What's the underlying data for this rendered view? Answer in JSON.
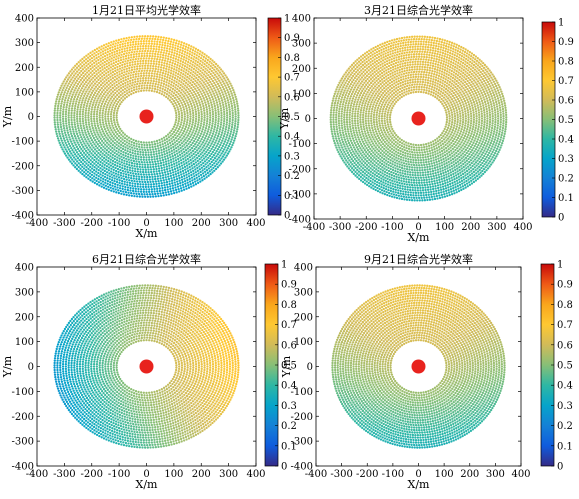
{
  "colormap": "parula",
  "colorbar": {
    "ticks": [
      0,
      0.1,
      0.2,
      0.3,
      0.4,
      0.5,
      0.6,
      0.7,
      0.8,
      0.9,
      1
    ],
    "tick_labels": [
      "0",
      "0.1",
      "0.2",
      "0.3",
      "0.4",
      "0.5",
      "0.6",
      "0.7",
      "0.8",
      "0.9",
      "1"
    ],
    "colors": [
      "#352a87",
      "#0f5cdd",
      "#1481d6",
      "#06a4ca",
      "#2eb7a4",
      "#87bf77",
      "#d1bb59",
      "#fec832",
      "#f9a61c",
      "#ef5a16",
      "#c80a0a"
    ]
  },
  "tower_color": "#e8231e",
  "chart_data": [
    {
      "type": "scatter",
      "title": "1月21日平均光学效率",
      "xlabel": "X/m",
      "ylabel": "Y/m",
      "xlim": [
        -400,
        400
      ],
      "ylim": [
        -400,
        400
      ],
      "x_ticks": [
        -400,
        -300,
        -200,
        -100,
        0,
        100,
        200,
        300,
        400
      ],
      "y_ticks": [
        -400,
        -300,
        -200,
        -100,
        0,
        100,
        200,
        300,
        400
      ],
      "x_tick_labels": [
        "-400",
        "-300",
        "-200",
        "-100",
        "0",
        "100",
        "200",
        "300",
        "400"
      ],
      "y_tick_labels": [
        "-400",
        "-300",
        "-200",
        "-100",
        "0",
        "100",
        "200",
        "300",
        "400"
      ],
      "field": {
        "inner_radius": 100,
        "outer_rx": 340,
        "outer_ry": 330
      },
      "tower": [
        0,
        0
      ],
      "efficiency_model": {
        "base": 0.55,
        "dir_x": 0,
        "dir_y": 1,
        "gain": 0.22
      }
    },
    {
      "type": "scatter",
      "title": "3月21日综合光学效率",
      "xlabel": "X/m",
      "ylabel": "Y/m",
      "xlim": [
        -400,
        400
      ],
      "ylim": [
        -400,
        400
      ],
      "x_ticks": [
        -400,
        -300,
        -200,
        -100,
        0,
        100,
        200,
        300,
        400
      ],
      "y_ticks": [
        -400,
        -300,
        -200,
        -100,
        0,
        100,
        200,
        300,
        400
      ],
      "x_tick_labels": [
        "-400",
        "-300",
        "-200",
        "-100",
        "0",
        "100",
        "200",
        "300",
        "400"
      ],
      "y_tick_labels": [
        "-400",
        "-300",
        "-200",
        "-100",
        "0",
        "100",
        "200",
        "300",
        "400"
      ],
      "field": {
        "inner_radius": 100,
        "outer_rx": 340,
        "outer_ry": 330
      },
      "tower": [
        0,
        0
      ],
      "efficiency_model": {
        "base": 0.57,
        "dir_x": 0,
        "dir_y": 1,
        "gain": 0.16
      }
    },
    {
      "type": "scatter",
      "title": "6月21日综合光学效率",
      "xlabel": "X/m",
      "ylabel": "Y/m",
      "xlim": [
        -400,
        400
      ],
      "ylim": [
        -400,
        400
      ],
      "x_ticks": [
        -400,
        -300,
        -200,
        -100,
        0,
        100,
        200,
        300,
        400
      ],
      "y_ticks": [
        -400,
        -300,
        -200,
        -100,
        0,
        100,
        200,
        300,
        400
      ],
      "x_tick_labels": [
        "-400",
        "-300",
        "-200",
        "-100",
        "0",
        "100",
        "200",
        "300",
        "400"
      ],
      "y_tick_labels": [
        "-400",
        "-300",
        "-200",
        "-100",
        "0",
        "100",
        "200",
        "300",
        "400"
      ],
      "field": {
        "inner_radius": 100,
        "outer_rx": 340,
        "outer_ry": 330
      },
      "tower": [
        0,
        0
      ],
      "efficiency_model": {
        "base": 0.55,
        "dir_x": 0.95,
        "dir_y": 0.2,
        "gain": 0.24
      }
    },
    {
      "type": "scatter",
      "title": "9月21日综合光学效率",
      "xlabel": "X/m",
      "ylabel": "Y/m",
      "xlim": [
        -400,
        400
      ],
      "ylim": [
        -400,
        400
      ],
      "x_ticks": [
        -400,
        -300,
        -200,
        -100,
        0,
        100,
        200,
        300,
        400
      ],
      "y_ticks": [
        -400,
        -300,
        -200,
        -100,
        0,
        100,
        200,
        300,
        400
      ],
      "x_tick_labels": [
        "-400",
        "-300",
        "-200",
        "-100",
        "0",
        "100",
        "200",
        "300",
        "400"
      ],
      "y_tick_labels": [
        "-400",
        "-300",
        "-200",
        "-100",
        "0",
        "100",
        "200",
        "300",
        "400"
      ],
      "field": {
        "inner_radius": 100,
        "outer_rx": 340,
        "outer_ry": 330
      },
      "tower": [
        0,
        0
      ],
      "efficiency_model": {
        "base": 0.57,
        "dir_x": 0,
        "dir_y": 1,
        "gain": 0.16
      }
    }
  ]
}
